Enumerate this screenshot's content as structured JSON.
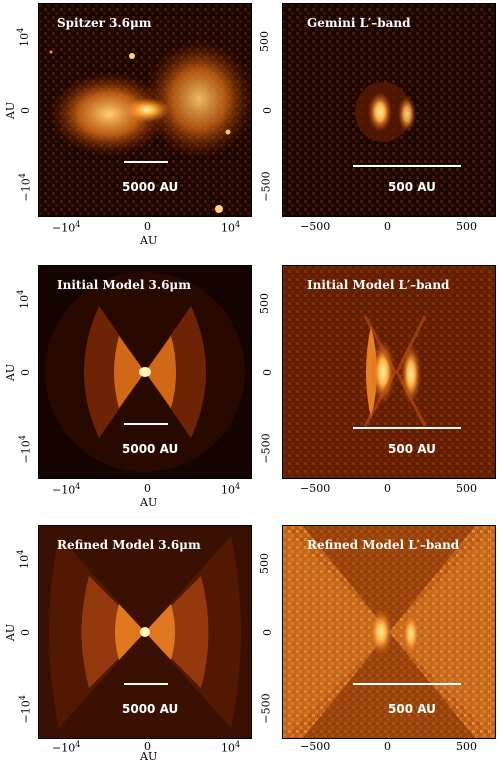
{
  "panels": [
    {
      "title": "Spitzer 3.6μm",
      "scale": "5000 AU",
      "xlabel": "AU",
      "ylabel": "AU"
    },
    {
      "title": "Gemini L′–band",
      "scale": "500 AU"
    },
    {
      "title": "Initial Model 3.6μm",
      "scale": "5000 AU",
      "xlabel": "AU",
      "ylabel": "AU"
    },
    {
      "title": "Initial Model L′–band",
      "scale": "500 AU"
    },
    {
      "title": "Refined Model 3.6μm",
      "scale": "5000 AU",
      "xlabel": "AU",
      "ylabel": "AU"
    },
    {
      "title": "Refined Model L′–band",
      "scale": "500 AU"
    }
  ],
  "ticks": {
    "left_y": [
      "10",
      "0",
      "−10"
    ],
    "left_y_exp": "4",
    "left_x": [
      "−10",
      "0",
      "10"
    ],
    "left_x_exp": "4",
    "right_y": [
      "500",
      "0",
      "−500"
    ],
    "right_x": [
      "−500",
      "0",
      "500"
    ]
  },
  "colors": {
    "black": "#000000",
    "dark": "#2a0a00",
    "mid": "#a03a08",
    "bright": "#ffa030",
    "core": "#ffe090"
  }
}
